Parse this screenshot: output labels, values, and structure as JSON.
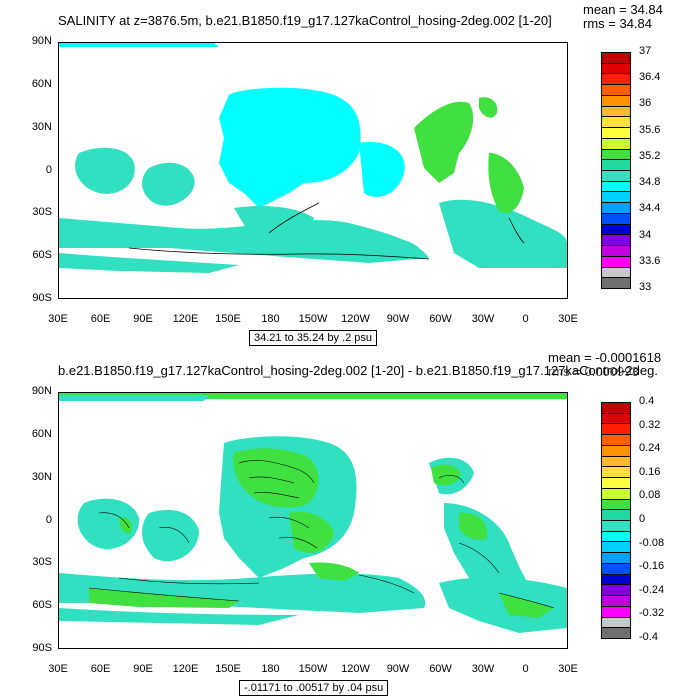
{
  "panel1": {
    "title": "SALINITY at z=3876.5m, b.e21.B1850.f19_g17.127kaControl_hosing-2deg.002 [1-20]",
    "mean": "mean = 34.84",
    "rms": "rms = 34.84",
    "contour_info": "34.21 to 35.24 by .2 psu",
    "colorbar_labels": [
      "37",
      "36.4",
      "36",
      "35.6",
      "35.2",
      "34.8",
      "34.4",
      "34",
      "33.6",
      "33"
    ]
  },
  "panel2": {
    "title": "b.e21.B1850.f19_g17.127kaControl_hosing-2deg.002 [1-20] - b.e21.B1850.f19_g17.127kaControl-2deg.",
    "mean": "mean = -0.0001618",
    "rms": "rms = 0.000993",
    "contour_info": "-.01171 to .00517 by .04 psu",
    "colorbar_labels": [
      "0.4",
      "0.32",
      "0.24",
      "0.16",
      "0.08",
      "0",
      "-0.08",
      "-0.16",
      "-0.24",
      "-0.32",
      "-0.4"
    ]
  },
  "y_axis_labels": [
    "90N",
    "60N",
    "30N",
    "0",
    "30S",
    "60S",
    "90S"
  ],
  "x_axis_labels": [
    "30E",
    "60E",
    "90E",
    "120E",
    "150E",
    "180",
    "150W",
    "120W",
    "90W",
    "60W",
    "30W",
    "0",
    "30E"
  ],
  "colors": {
    "ocean_cyan": "#00FFFF",
    "ocean_teal": "#30E0C0",
    "green": "#40E040",
    "land": "#FFFFFF",
    "palette": [
      "#C00000",
      "#E00000",
      "#FF2000",
      "#FF6000",
      "#FF9000",
      "#FFB830",
      "#FFE040",
      "#FFFF40",
      "#C8FF30",
      "#40E040",
      "#20D8A0",
      "#30E0C0",
      "#00FFFF",
      "#00D0FF",
      "#00A0FF",
      "#0050FF",
      "#0000D0",
      "#8000E0",
      "#C000E0",
      "#FF00FF",
      "#C8C8C8",
      "#707070"
    ]
  }
}
